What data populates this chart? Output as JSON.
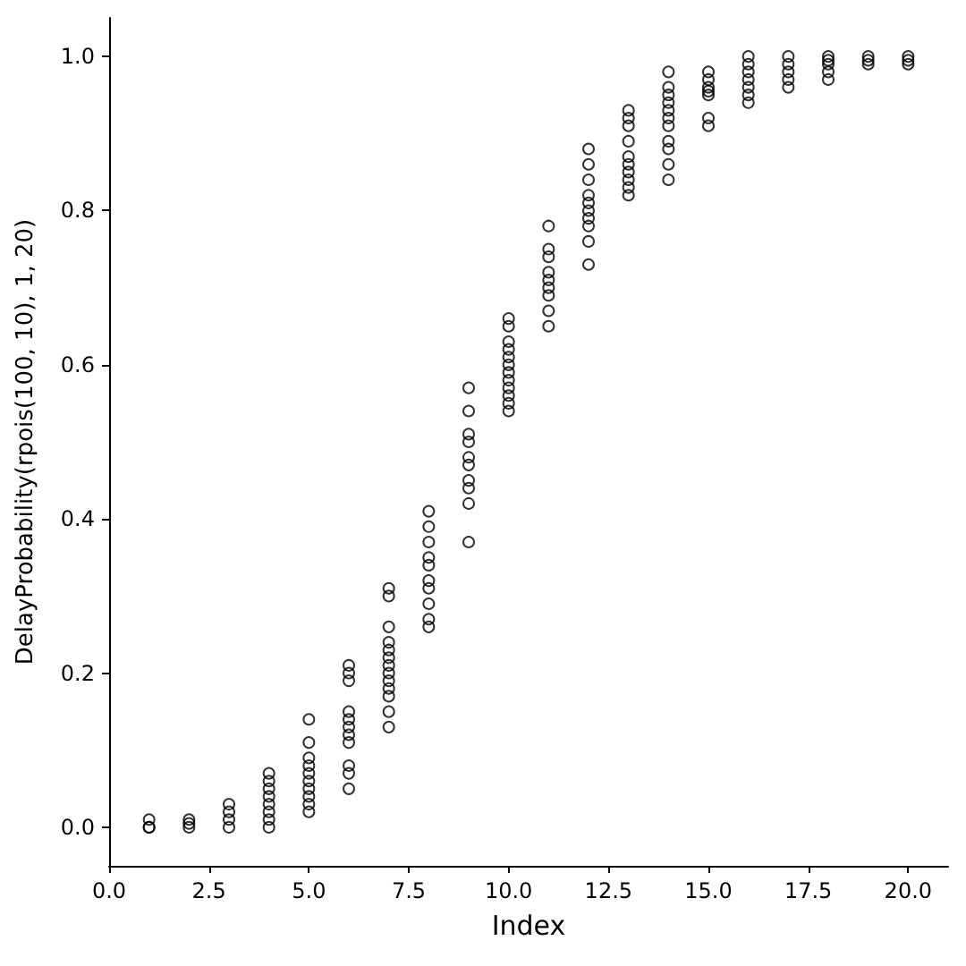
{
  "chart_data": {
    "type": "scatter",
    "xlabel": "Index",
    "ylabel": "DelayProbability(rpois(100, 10), 1, 20)",
    "xlim": [
      0,
      21
    ],
    "ylim": [
      -0.05,
      1.05
    ],
    "xticks": [
      {
        "value": 0,
        "label": "0.0"
      },
      {
        "value": 2.5,
        "label": "2.5"
      },
      {
        "value": 5,
        "label": "5.0"
      },
      {
        "value": 7.5,
        "label": "7.5"
      },
      {
        "value": 10,
        "label": "10.0"
      },
      {
        "value": 12.5,
        "label": "12.5"
      },
      {
        "value": 15,
        "label": "15.0"
      },
      {
        "value": 17.5,
        "label": "17.5"
      },
      {
        "value": 20,
        "label": "20.0"
      }
    ],
    "yticks": [
      {
        "value": 0,
        "label": "0.0"
      },
      {
        "value": 0.2,
        "label": "0.2"
      },
      {
        "value": 0.4,
        "label": "0.4"
      },
      {
        "value": 0.6,
        "label": "0.6"
      },
      {
        "value": 0.8,
        "label": "0.8"
      },
      {
        "value": 1,
        "label": "1.0"
      }
    ],
    "marker": "circle",
    "series": [
      {
        "color": "#000000",
        "x": [
          1,
          1,
          1,
          2,
          2,
          2,
          3,
          3,
          3,
          3,
          4,
          4,
          4,
          4,
          4,
          4,
          4,
          4,
          5,
          5,
          5,
          5,
          5,
          5,
          5,
          5,
          5,
          5,
          6,
          6,
          6,
          6,
          6,
          6,
          6,
          6,
          6,
          6,
          6,
          7,
          7,
          7,
          7,
          7,
          7,
          7,
          7,
          7,
          7,
          7,
          7,
          7,
          8,
          8,
          8,
          8,
          8,
          8,
          8,
          8,
          8,
          8,
          9,
          9,
          9,
          9,
          9,
          9,
          9,
          9,
          9,
          9,
          10,
          10,
          10,
          10,
          10,
          10,
          10,
          10,
          10,
          10,
          10,
          10,
          11,
          11,
          11,
          11,
          11,
          11,
          11,
          11,
          11,
          12,
          12,
          12,
          12,
          12,
          12,
          12,
          12,
          12,
          12,
          13,
          13,
          13,
          13,
          13,
          13,
          13,
          13,
          13,
          13,
          14,
          14,
          14,
          14,
          14,
          14,
          14,
          14,
          14,
          14,
          14,
          15,
          15,
          15,
          15,
          15,
          15,
          15,
          16,
          16,
          16,
          16,
          16,
          16,
          16,
          17,
          17,
          17,
          17,
          17,
          18,
          18,
          18,
          18,
          18,
          19,
          19,
          19,
          20,
          20,
          20
        ],
        "values": [
          0.01,
          0.0,
          0.0,
          0.01,
          0.005,
          0.0,
          0.03,
          0.02,
          0.01,
          0.0,
          0.07,
          0.06,
          0.05,
          0.04,
          0.03,
          0.02,
          0.01,
          0.0,
          0.14,
          0.11,
          0.09,
          0.08,
          0.07,
          0.06,
          0.05,
          0.04,
          0.03,
          0.02,
          0.21,
          0.2,
          0.19,
          0.15,
          0.14,
          0.13,
          0.12,
          0.11,
          0.08,
          0.07,
          0.05,
          0.31,
          0.3,
          0.26,
          0.24,
          0.23,
          0.22,
          0.21,
          0.2,
          0.19,
          0.18,
          0.17,
          0.15,
          0.13,
          0.41,
          0.39,
          0.37,
          0.35,
          0.34,
          0.32,
          0.31,
          0.29,
          0.27,
          0.26,
          0.57,
          0.54,
          0.51,
          0.5,
          0.48,
          0.47,
          0.45,
          0.44,
          0.42,
          0.37,
          0.66,
          0.65,
          0.63,
          0.62,
          0.61,
          0.6,
          0.59,
          0.58,
          0.57,
          0.56,
          0.55,
          0.54,
          0.78,
          0.75,
          0.74,
          0.72,
          0.71,
          0.7,
          0.69,
          0.67,
          0.65,
          0.88,
          0.86,
          0.84,
          0.82,
          0.81,
          0.8,
          0.79,
          0.78,
          0.76,
          0.73,
          0.93,
          0.92,
          0.91,
          0.89,
          0.87,
          0.86,
          0.85,
          0.84,
          0.83,
          0.82,
          0.98,
          0.96,
          0.95,
          0.94,
          0.93,
          0.92,
          0.91,
          0.89,
          0.88,
          0.86,
          0.84,
          0.98,
          0.97,
          0.96,
          0.955,
          0.95,
          0.92,
          0.91,
          1.0,
          0.99,
          0.98,
          0.97,
          0.96,
          0.95,
          0.94,
          1.0,
          0.99,
          0.98,
          0.97,
          0.96,
          1.0,
          0.995,
          0.99,
          0.98,
          0.97,
          1.0,
          0.995,
          0.99,
          1.0,
          0.995,
          0.99
        ]
      }
    ]
  }
}
